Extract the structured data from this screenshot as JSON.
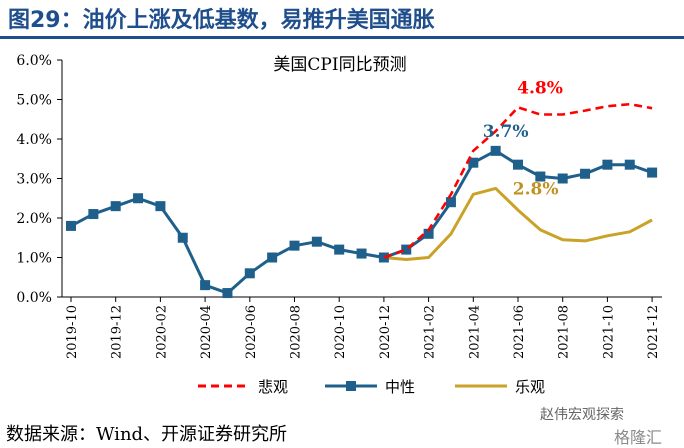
{
  "figure_title": "图29：油价上涨及低基数，易推升美国通胀",
  "footer": "数据来源：Wind、开源证券研究所",
  "watermark": "赵伟宏观探索",
  "watermark_site": "格隆汇",
  "colors": {
    "title": "#1f4e8c",
    "pessimistic": "#ff0000",
    "neutral": "#1f5f8b",
    "optimistic": "#c9a227",
    "label_neutral": "#1f5f8b",
    "label_optimistic": "#c09020"
  },
  "chart_data": {
    "type": "line",
    "title": "美国CPI同比预测",
    "y_unit": "%",
    "ylim": [
      0,
      6
    ],
    "yticks": [
      "0.0%",
      "1.0%",
      "2.0%",
      "3.0%",
      "4.0%",
      "5.0%",
      "6.0%"
    ],
    "x_ticks": [
      "2019-10",
      "2019-12",
      "2020-02",
      "2020-04",
      "2020-06",
      "2020-08",
      "2020-10",
      "2020-12",
      "2021-02",
      "2021-04",
      "2021-06",
      "2021-08",
      "2021-10",
      "2021-12"
    ],
    "legend_position": "bottom",
    "series": [
      {
        "name": "悲观",
        "style": "dashed",
        "x": [
          "2020-12",
          "2021-01",
          "2021-02",
          "2021-03",
          "2021-04",
          "2021-05",
          "2021-06",
          "2021-07",
          "2021-08",
          "2021-09",
          "2021-10",
          "2021-11",
          "2021-12"
        ],
        "values": [
          1.0,
          1.2,
          1.7,
          2.6,
          3.7,
          4.2,
          4.8,
          4.62,
          4.62,
          4.72,
          4.83,
          4.88,
          4.78
        ],
        "annotation": {
          "text": "4.8%",
          "x": "2021-06"
        }
      },
      {
        "name": "中性",
        "style": "solid-square-markers",
        "x": [
          "2019-10",
          "2019-11",
          "2019-12",
          "2020-01",
          "2020-02",
          "2020-03",
          "2020-04",
          "2020-05",
          "2020-06",
          "2020-07",
          "2020-08",
          "2020-09",
          "2020-10",
          "2020-11",
          "2020-12",
          "2021-01",
          "2021-02",
          "2021-03",
          "2021-04",
          "2021-05",
          "2021-06",
          "2021-07",
          "2021-08",
          "2021-09",
          "2021-10",
          "2021-11",
          "2021-12"
        ],
        "values": [
          1.8,
          2.1,
          2.3,
          2.5,
          2.3,
          1.5,
          0.3,
          0.1,
          0.6,
          1.0,
          1.3,
          1.4,
          1.2,
          1.1,
          1.0,
          1.2,
          1.6,
          2.4,
          3.4,
          3.7,
          3.35,
          3.05,
          3.0,
          3.12,
          3.35,
          3.35,
          3.15
        ],
        "annotation": {
          "text": "3.7%",
          "x": "2021-05"
        }
      },
      {
        "name": "乐观",
        "style": "solid",
        "x": [
          "2020-12",
          "2021-01",
          "2021-02",
          "2021-03",
          "2021-04",
          "2021-05",
          "2021-06",
          "2021-07",
          "2021-08",
          "2021-09",
          "2021-10",
          "2021-11",
          "2021-12"
        ],
        "values": [
          1.0,
          0.95,
          1.0,
          1.6,
          2.6,
          2.75,
          2.2,
          1.7,
          1.45,
          1.42,
          1.55,
          1.65,
          1.95
        ],
        "annotation": {
          "text": "2.8%",
          "x": "2021-05"
        }
      }
    ]
  }
}
